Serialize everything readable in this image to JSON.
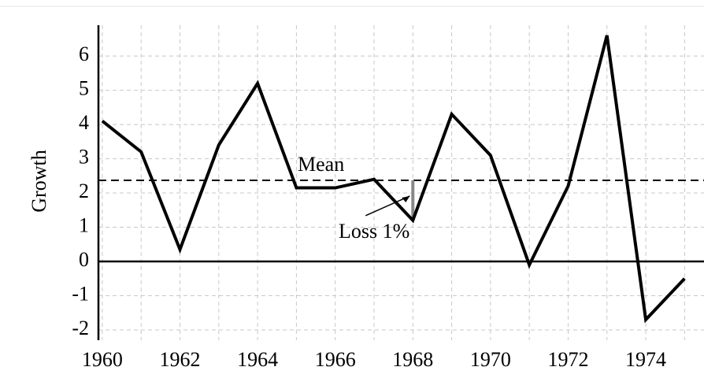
{
  "chart_data": {
    "type": "line",
    "y_label": "Growth",
    "x": [
      1960,
      1961,
      1962,
      1963,
      1964,
      1965,
      1966,
      1967,
      1968,
      1969,
      1970,
      1971,
      1972,
      1973,
      1974,
      1975
    ],
    "series": [
      {
        "color": "#000000",
        "values": [
          4.1,
          3.2,
          0.35,
          3.4,
          5.2,
          2.15,
          2.15,
          2.4,
          1.2,
          4.3,
          3.1,
          -0.1,
          2.2,
          6.6,
          -1.7,
          -0.5
        ]
      }
    ],
    "xlim": [
      1959.9,
      1975.5
    ],
    "xticks": [
      1960,
      1962,
      1964,
      1966,
      1968,
      1970,
      1972,
      1974
    ],
    "ylim": [
      -2.3,
      6.9
    ],
    "yticks": [
      -2,
      -1,
      0,
      1,
      2,
      3,
      4,
      5,
      6
    ],
    "grid": true,
    "mean": {
      "label": "Mean",
      "value": 2.37
    },
    "annotation": {
      "text": "Loss 1%",
      "x": 1968
    }
  }
}
